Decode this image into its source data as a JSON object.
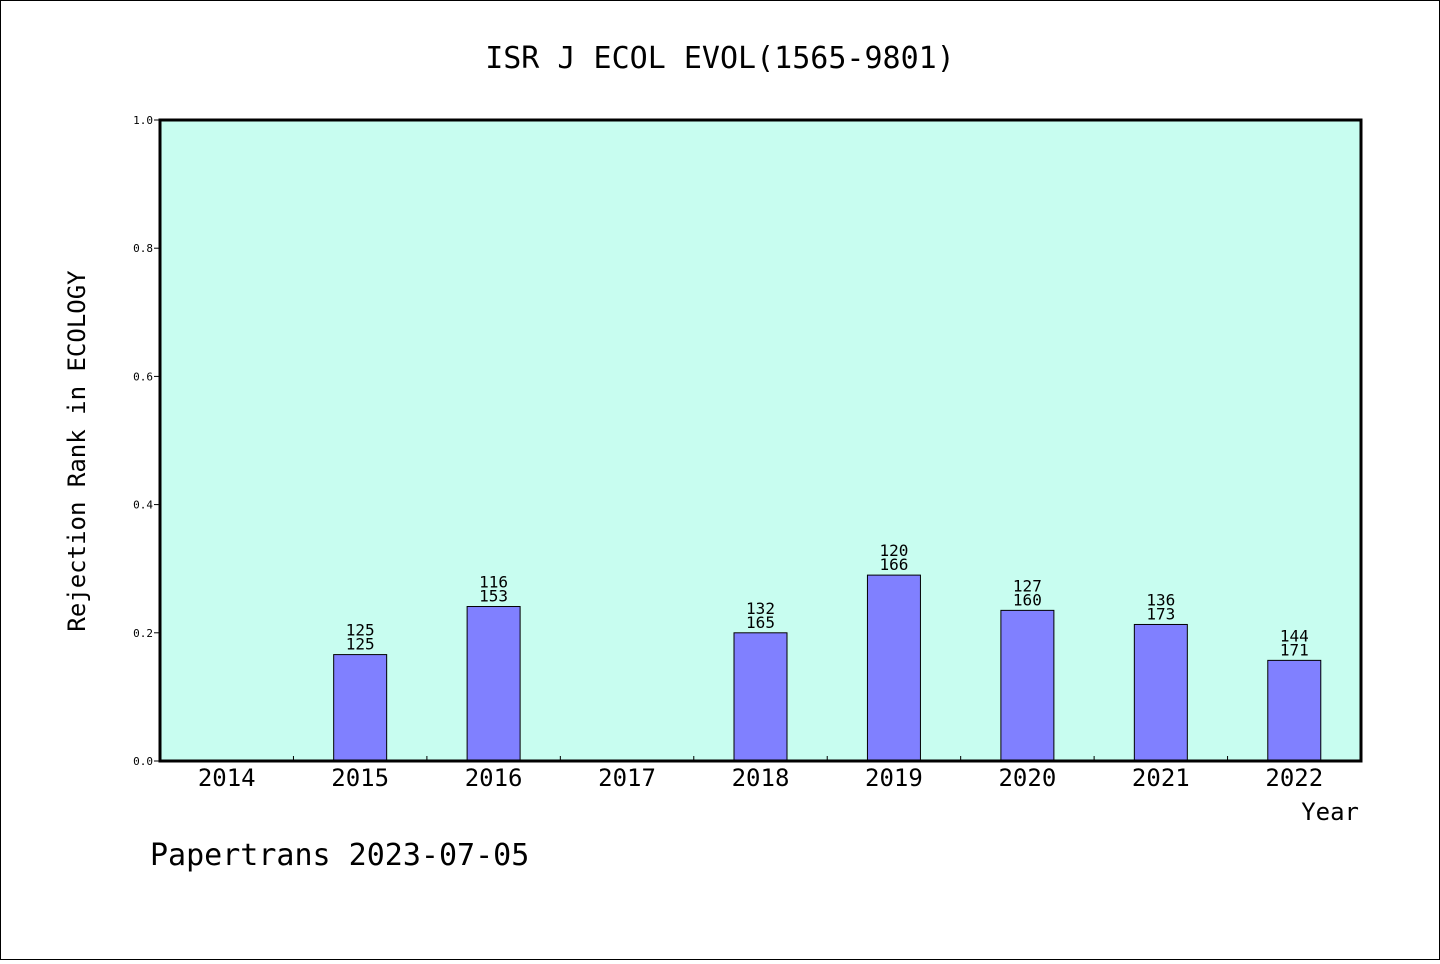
{
  "chart_data": {
    "type": "bar",
    "title": "ISR J ECOL EVOL(1565-9801)",
    "xlabel": "Year",
    "ylabel": "Rejection Rank in ECOLOGY",
    "ylim": [
      0,
      1.0
    ],
    "yticks": [
      "0.0",
      "0.2",
      "0.4",
      "0.6",
      "0.8",
      "1.0"
    ],
    "categories": [
      "2014",
      "2015",
      "2016",
      "2017",
      "2018",
      "2019",
      "2020",
      "2021",
      "2022"
    ],
    "values": [
      null,
      0.166,
      0.241,
      null,
      0.2,
      0.29,
      0.235,
      0.213,
      0.157
    ],
    "labels_top": [
      "",
      "125",
      "116",
      "",
      "132",
      "120",
      "127",
      "136",
      "144"
    ],
    "labels_bottom": [
      "",
      "125",
      "153",
      "",
      "165",
      "166",
      "160",
      "173",
      "171"
    ],
    "grid": false,
    "legend": "none",
    "colors": {
      "plot_background": "#c8fdf0",
      "bar_fill": "#8080ff",
      "bar_stroke": "#000000"
    }
  },
  "footer": {
    "text": "Papertrans 2023-07-05"
  }
}
